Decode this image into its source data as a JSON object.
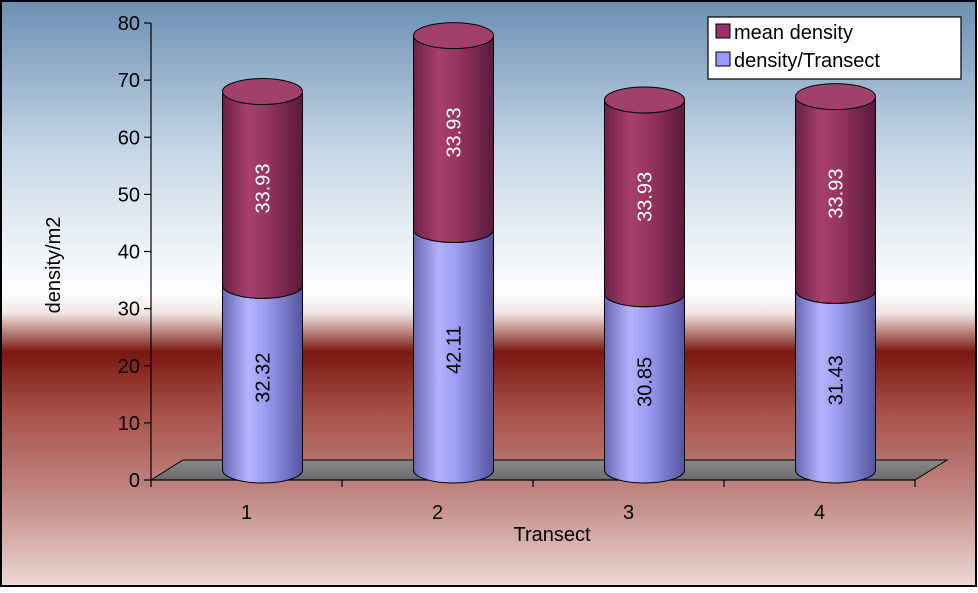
{
  "chart_data": {
    "type": "bar",
    "stacked": true,
    "style": "3d-cylinder",
    "categories": [
      "1",
      "2",
      "3",
      "4"
    ],
    "series": [
      {
        "name": "density/Transect",
        "values": [
          32.32,
          42.11,
          30.85,
          31.43
        ],
        "color": "#9999ff"
      },
      {
        "name": "mean density",
        "values": [
          33.93,
          33.93,
          33.93,
          33.93
        ],
        "color": "#993366"
      }
    ],
    "xlabel": "Transect",
    "ylabel": "density/m2",
    "ylim": [
      0,
      80
    ],
    "yticks": [
      0,
      10,
      20,
      30,
      40,
      50,
      60,
      70,
      80
    ],
    "legend_position": "top-right",
    "grid": false,
    "data_labels": true,
    "background": "gradient blue to dark red"
  }
}
